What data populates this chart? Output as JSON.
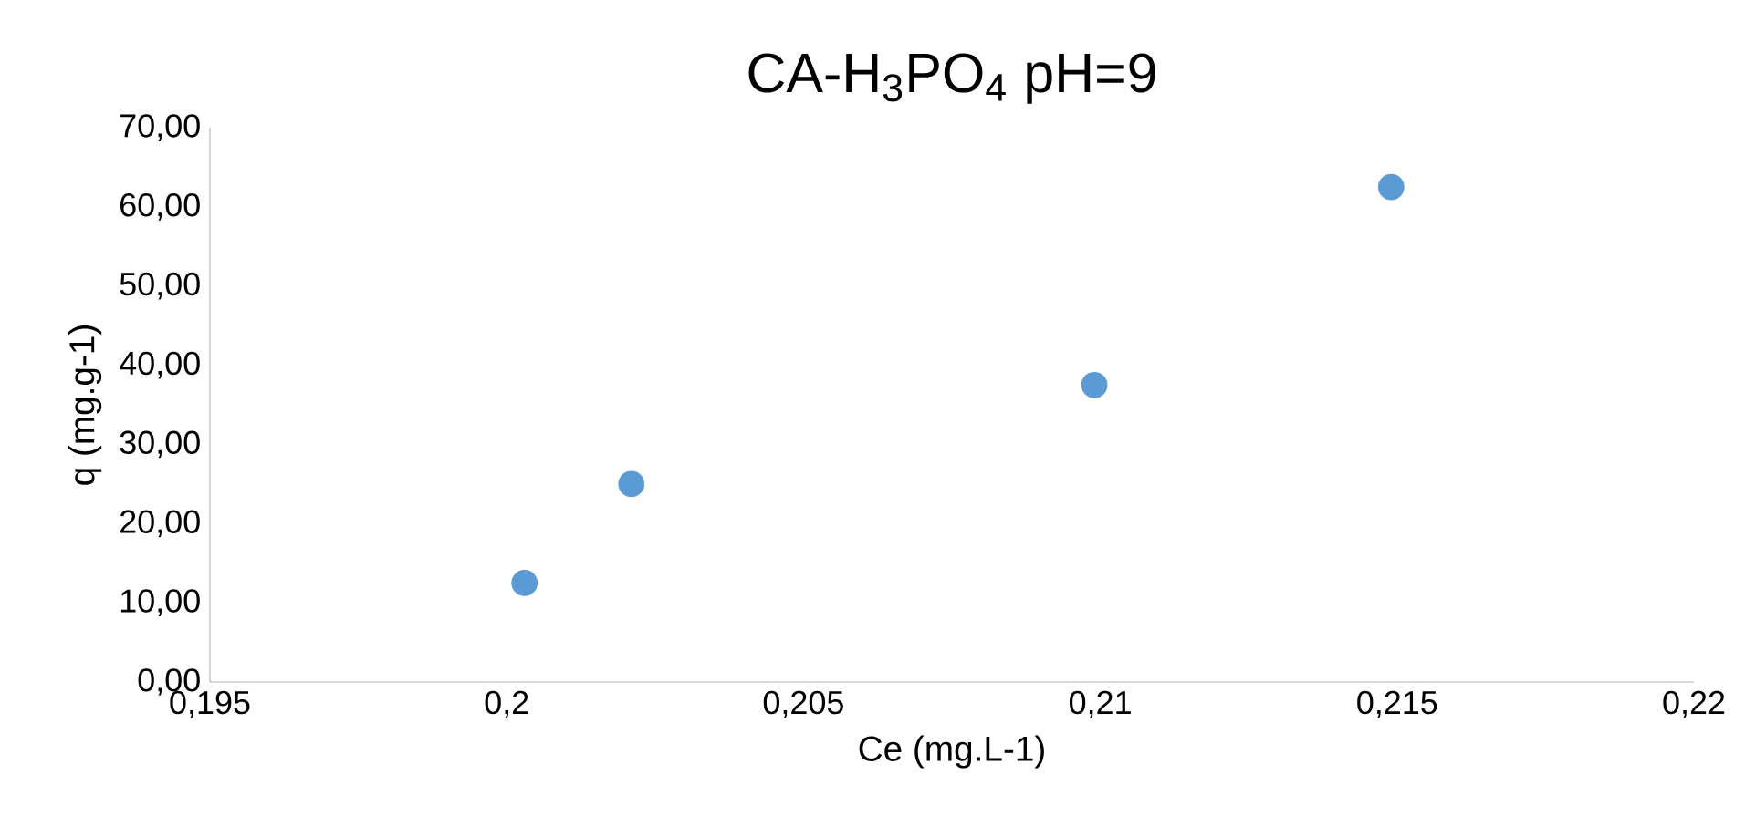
{
  "chart_data": {
    "type": "scatter",
    "title": "CA-H$_{3}$PO$_{4}$ pH=9",
    "xlabel": "Ce (mg.L-1)",
    "ylabel": "q (mg.g-1)",
    "x": [
      0.2003,
      0.2021,
      0.2099,
      0.2149
    ],
    "series": [
      {
        "color": "#5b9bd5",
        "values": [
          12.5,
          25,
          37.5,
          62.5
        ]
      }
    ],
    "xlim": [
      0.195,
      0.22
    ],
    "xticks": [
      {
        "value": 0.195,
        "label": "0,195"
      },
      {
        "value": 0.2,
        "label": "0,2"
      },
      {
        "value": 0.205,
        "label": "0,205"
      },
      {
        "value": 0.21,
        "label": "0,21"
      },
      {
        "value": 0.215,
        "label": "0,215"
      },
      {
        "value": 0.22,
        "label": "0,22"
      }
    ],
    "ylim": [
      0,
      70
    ],
    "yticks": [
      {
        "value": 0,
        "label": "0,00"
      },
      {
        "value": 10,
        "label": "10,00"
      },
      {
        "value": 20,
        "label": "20,00"
      },
      {
        "value": 30,
        "label": "30,00"
      },
      {
        "value": 40,
        "label": "40,00"
      },
      {
        "value": 50,
        "label": "50,00"
      },
      {
        "value": 60,
        "label": "60,00"
      },
      {
        "value": 70,
        "label": "70,00"
      }
    ],
    "grid": false
  }
}
